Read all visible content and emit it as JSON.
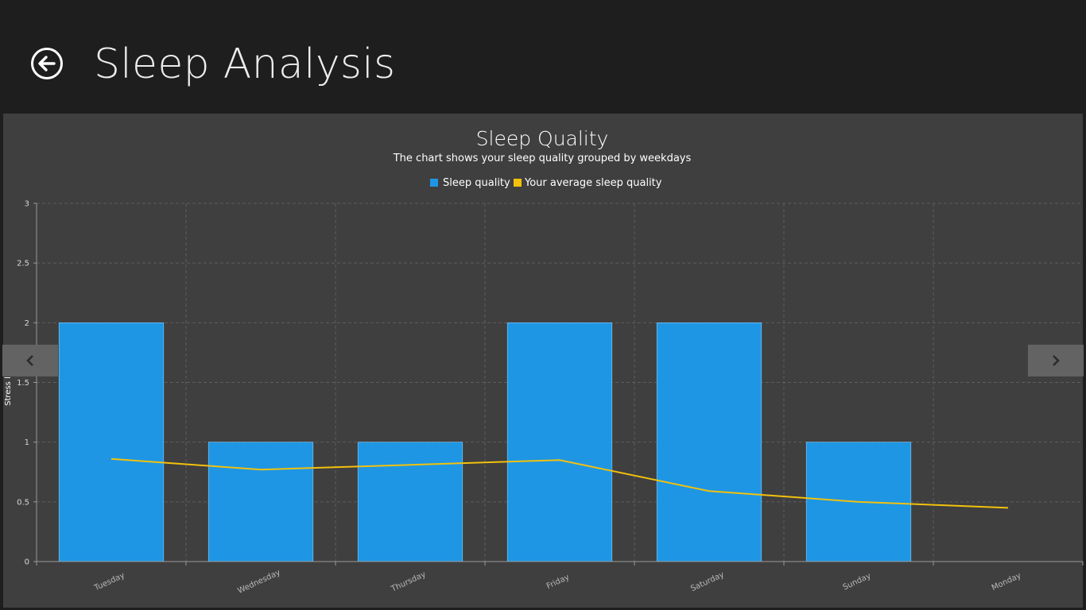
{
  "header": {
    "title": "Sleep Analysis",
    "back_icon": "back-arrow-icon"
  },
  "navigation": {
    "prev_icon": "chevron-left-icon",
    "next_icon": "chevron-right-icon"
  },
  "colors": {
    "bar": "#1e96e4",
    "line": "#f2c10d",
    "panel": "#3f3f3f",
    "header": "#1e1e1e"
  },
  "chart_data": {
    "type": "bar",
    "title": "Sleep Quality",
    "subtitle": "The chart shows your sleep quality grouped by weekdays",
    "ylabel": "Stress level",
    "xlabel": "",
    "ylim": [
      0,
      3
    ],
    "yticks": [
      "0",
      "0.5",
      "1",
      "1.5",
      "2",
      "2.5",
      "3"
    ],
    "grid": true,
    "legend_position": "top-center",
    "categories": [
      "Tuesday",
      "Wednesday",
      "Thursday",
      "Friday",
      "Saturday",
      "Sunday",
      "Monday"
    ],
    "series": [
      {
        "name": "Sleep quality",
        "type": "bar",
        "values": [
          2,
          1,
          1,
          2,
          2,
          1,
          0
        ]
      },
      {
        "name": "Your average sleep quality",
        "type": "line",
        "values": [
          0.86,
          0.77,
          0.81,
          0.85,
          0.59,
          0.5,
          0.45
        ]
      }
    ]
  }
}
